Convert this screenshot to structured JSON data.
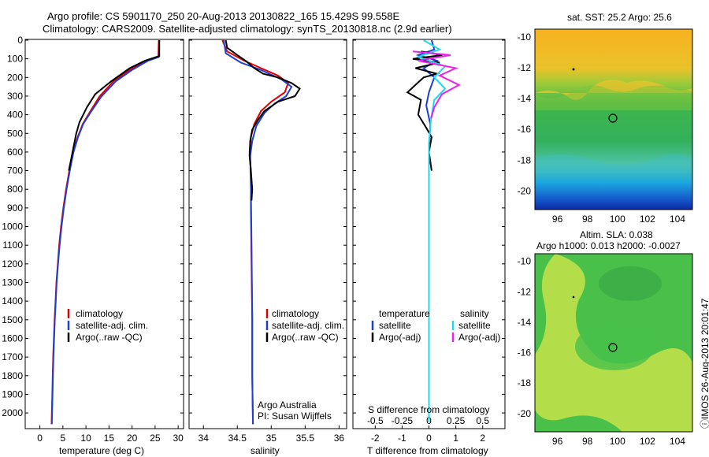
{
  "header": {
    "line1": "Argo profile: CS 5901170_250 20-Aug-2013 20130822_165 15.429S 99.558E",
    "line2": "Climatology: CARS2009. Satellite-adjusted climatology: synTS_20130818.nc (2.9d earlier)"
  },
  "footer_note": "ⓘIMOS 26-Aug-2013 20:01:47",
  "colors": {
    "climatology": "#e00000",
    "satellite": "#1f3fd0",
    "argo": "#000000",
    "salinity_satellite": "#20d8ee",
    "salinity_argo": "#ee20ee"
  },
  "chart_data": [
    {
      "type": "line",
      "id": "temperature",
      "xlabel": "temperature (deg C)",
      "xticks": [
        "0",
        "5",
        "10",
        "15",
        "20",
        "25",
        "30"
      ],
      "xlim": [
        -3,
        31
      ],
      "yticks": [
        "0",
        "100",
        "200",
        "300",
        "400",
        "500",
        "600",
        "700",
        "800",
        "900",
        "1000",
        "1100",
        "1200",
        "1300",
        "1400",
        "1500",
        "1600",
        "1700",
        "1800",
        "1900",
        "2000"
      ],
      "ylim": [
        0,
        2080
      ],
      "legend": [
        "climatology",
        "satellite-adj. clim.",
        "Argo(..raw -QC)"
      ],
      "series": [
        {
          "name": "climatology",
          "color": "#e00000",
          "points": [
            [
              25.8,
              0
            ],
            [
              25.7,
              90
            ],
            [
              23,
              110
            ],
            [
              19.5,
              160
            ],
            [
              16,
              220
            ],
            [
              13,
              300
            ],
            [
              11,
              380
            ],
            [
              9.3,
              450
            ],
            [
              8.2,
              520
            ],
            [
              7.2,
              600
            ],
            [
              6.4,
              700
            ],
            [
              5.7,
              800
            ],
            [
              5.1,
              900
            ],
            [
              4.6,
              1000
            ],
            [
              4.2,
              1100
            ],
            [
              3.9,
              1200
            ],
            [
              3.6,
              1300
            ],
            [
              3.4,
              1400
            ],
            [
              3.2,
              1500
            ],
            [
              3.05,
              1600
            ],
            [
              2.9,
              1700
            ],
            [
              2.8,
              1800
            ],
            [
              2.7,
              1900
            ],
            [
              2.6,
              2000
            ],
            [
              2.55,
              2060
            ]
          ]
        },
        {
          "name": "satellite-adj. clim.",
          "color": "#1f3fd0",
          "points": [
            [
              25.9,
              0
            ],
            [
              25.8,
              90
            ],
            [
              23.5,
              110
            ],
            [
              20,
              160
            ],
            [
              16.5,
              220
            ],
            [
              13.4,
              300
            ],
            [
              11.2,
              380
            ],
            [
              9.4,
              450
            ],
            [
              8.3,
              520
            ],
            [
              7.3,
              600
            ],
            [
              6.5,
              700
            ],
            [
              5.8,
              800
            ],
            [
              5.2,
              900
            ],
            [
              4.7,
              1000
            ],
            [
              4.3,
              1100
            ],
            [
              3.95,
              1200
            ],
            [
              3.65,
              1300
            ],
            [
              3.45,
              1400
            ],
            [
              3.25,
              1500
            ],
            [
              3.1,
              1600
            ],
            [
              2.95,
              1700
            ],
            [
              2.85,
              1800
            ],
            [
              2.75,
              1900
            ],
            [
              2.65,
              2000
            ],
            [
              2.6,
              2060
            ]
          ]
        },
        {
          "name": "Argo(..raw -QC)",
          "color": "#000000",
          "points": [
            [
              25.9,
              0
            ],
            [
              25.9,
              85
            ],
            [
              22.8,
              110
            ],
            [
              19.5,
              150
            ],
            [
              15.5,
              220
            ],
            [
              12,
              290
            ],
            [
              10.2,
              360
            ],
            [
              8.6,
              440
            ],
            [
              7.9,
              500
            ],
            [
              7.1,
              600
            ],
            [
              6.3,
              700
            ]
          ]
        }
      ]
    },
    {
      "type": "line",
      "id": "salinity",
      "xlabel": "salinity",
      "xticks": [
        "34",
        "34.5",
        "35",
        "35.5",
        "36"
      ],
      "xlim": [
        33.8,
        36.1
      ],
      "legend": [
        "climatology",
        "satellite-adj. clim.",
        "Argo(..raw -QC)"
      ],
      "annotation": [
        "Argo Australia",
        "PI: Susan Wijffels"
      ],
      "series": [
        {
          "name": "climatology",
          "color": "#e00000",
          "points": [
            [
              34.28,
              0
            ],
            [
              34.35,
              60
            ],
            [
              34.6,
              110
            ],
            [
              34.85,
              150
            ],
            [
              35.1,
              190
            ],
            [
              35.25,
              230
            ],
            [
              35.2,
              280
            ],
            [
              35.0,
              330
            ],
            [
              34.85,
              380
            ],
            [
              34.75,
              450
            ],
            [
              34.7,
              520
            ],
            [
              34.68,
              600
            ],
            [
              34.7,
              700
            ],
            [
              34.7,
              900
            ],
            [
              34.71,
              1200
            ],
            [
              34.72,
              1500
            ],
            [
              34.72,
              1800
            ],
            [
              34.73,
              2060
            ]
          ]
        },
        {
          "name": "satellite-adj. clim.",
          "color": "#1f3fd0",
          "points": [
            [
              34.3,
              0
            ],
            [
              34.33,
              70
            ],
            [
              34.55,
              120
            ],
            [
              34.85,
              160
            ],
            [
              35.15,
              210
            ],
            [
              35.3,
              250
            ],
            [
              35.22,
              300
            ],
            [
              35.05,
              340
            ],
            [
              34.9,
              390
            ],
            [
              34.78,
              460
            ],
            [
              34.72,
              540
            ],
            [
              34.69,
              620
            ],
            [
              34.7,
              800
            ],
            [
              34.71,
              1100
            ],
            [
              34.72,
              1500
            ],
            [
              34.72,
              1800
            ],
            [
              34.73,
              2060
            ]
          ]
        },
        {
          "name": "Argo(..raw -QC)",
          "color": "#000000",
          "points": [
            [
              34.33,
              0
            ],
            [
              34.35,
              40
            ],
            [
              34.5,
              80
            ],
            [
              34.62,
              110
            ],
            [
              34.75,
              150
            ],
            [
              34.88,
              180
            ],
            [
              35.1,
              200
            ],
            [
              35.3,
              230
            ],
            [
              35.42,
              260
            ],
            [
              35.35,
              300
            ],
            [
              35.1,
              330
            ],
            [
              34.9,
              380
            ],
            [
              34.8,
              430
            ],
            [
              34.72,
              480
            ],
            [
              34.69,
              540
            ],
            [
              34.68,
              620
            ],
            [
              34.7,
              700
            ],
            [
              34.72,
              800
            ],
            [
              34.71,
              860
            ]
          ]
        }
      ]
    },
    {
      "type": "line",
      "id": "difference",
      "xlabel": "T difference from climatology",
      "xticks": [
        "-2",
        "-1",
        "0",
        "1",
        "2"
      ],
      "xlim": [
        -2.8,
        2.8
      ],
      "s_label": "S difference from climatology",
      "s_xticks": [
        "-0.5",
        "-0.25",
        "0",
        "0.25",
        "0.5"
      ],
      "legend_headers": [
        "temperature",
        "salinity"
      ],
      "legend_left": [
        "satellite",
        "Argo(-adj)"
      ],
      "legend_right": [
        "satellite",
        "Argo(-adj)"
      ],
      "series": [
        {
          "name": "T satellite",
          "color": "#1f3fd0",
          "points": [
            [
              0.1,
              0
            ],
            [
              0.2,
              50
            ],
            [
              -0.4,
              80
            ],
            [
              0.3,
              110
            ],
            [
              -0.2,
              150
            ],
            [
              0.2,
              200
            ],
            [
              0,
              280
            ],
            [
              -0.1,
              350
            ],
            [
              0.05,
              450
            ],
            [
              0,
              600
            ],
            [
              0,
              900
            ],
            [
              0,
              1300
            ],
            [
              0,
              1700
            ],
            [
              0,
              2050
            ]
          ]
        },
        {
          "name": "T Argo(-adj)",
          "color": "#000000",
          "points": [
            [
              -0.3,
              60
            ],
            [
              0.5,
              80
            ],
            [
              -0.6,
              100
            ],
            [
              0.4,
              120
            ],
            [
              -0.5,
              150
            ],
            [
              0.3,
              180
            ],
            [
              -0.2,
              200
            ],
            [
              -0.8,
              280
            ],
            [
              -0.3,
              320
            ],
            [
              -0.4,
              400
            ],
            [
              -0.1,
              470
            ],
            [
              0.1,
              520
            ],
            [
              0,
              600
            ],
            [
              0.1,
              700
            ]
          ]
        },
        {
          "name": "S satellite",
          "color": "#20d8ee",
          "points": [
            [
              -0.05,
              0
            ],
            [
              0.1,
              50
            ],
            [
              -0.1,
              90
            ],
            [
              0.15,
              140
            ],
            [
              0.05,
              200
            ],
            [
              0.15,
              260
            ],
            [
              0.05,
              320
            ],
            [
              0.02,
              420
            ],
            [
              0,
              550
            ],
            [
              0,
              900
            ],
            [
              0,
              1400
            ],
            [
              0,
              2050
            ]
          ]
        },
        {
          "name": "S Argo(-adj)",
          "color": "#ee20ee",
          "points": [
            [
              -0.15,
              60
            ],
            [
              0.2,
              80
            ],
            [
              -0.1,
              110
            ],
            [
              0.25,
              150
            ],
            [
              0.1,
              190
            ],
            [
              0.28,
              240
            ],
            [
              0.12,
              290
            ],
            [
              0.05,
              360
            ],
            [
              0.02,
              420
            ]
          ]
        }
      ]
    }
  ],
  "maps": [
    {
      "id": "sst",
      "title": "sat. SST: 25.2 Argo: 25.6",
      "yticks": [
        "-10",
        "-12",
        "-14",
        "-16",
        "-18",
        "-20"
      ],
      "xticks": [
        "96",
        "98",
        "100",
        "102",
        "104"
      ]
    },
    {
      "id": "sla",
      "title_line1": "Altim. SLA: 0.038",
      "title_line2": "Argo h1000: 0.013 h2000: -0.0027",
      "yticks": [
        "-10",
        "-12",
        "-14",
        "-16",
        "-18",
        "-20"
      ],
      "xticks": [
        "96",
        "98",
        "100",
        "102",
        "104"
      ]
    }
  ]
}
